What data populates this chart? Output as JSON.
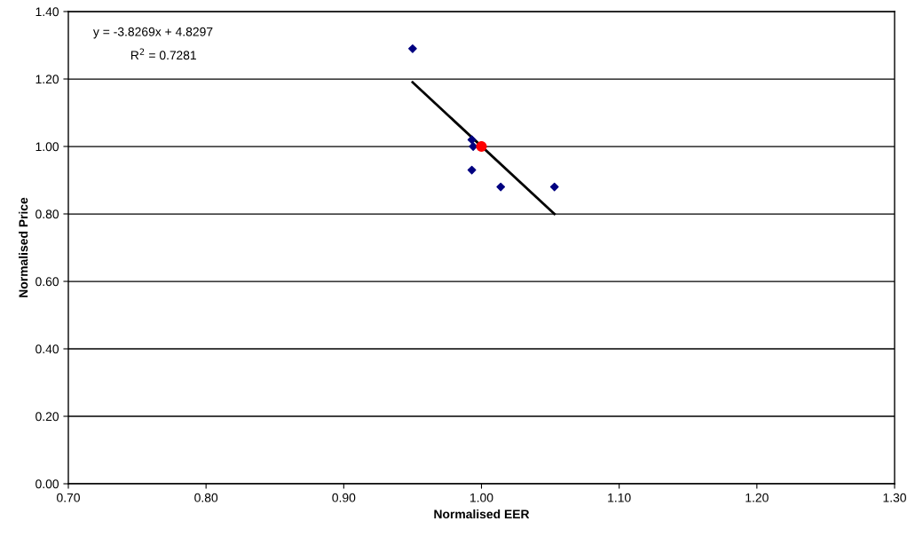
{
  "chart_data": {
    "type": "scatter",
    "xlabel": "Normalised EER",
    "ylabel": "Normalised Price",
    "xlim": [
      0.7,
      1.3
    ],
    "xticks": [
      {
        "value": 0.7,
        "label": "0.70"
      },
      {
        "value": 0.8,
        "label": "0.80"
      },
      {
        "value": 0.9,
        "label": "0.90"
      },
      {
        "value": 1.0,
        "label": "1.00"
      },
      {
        "value": 1.1,
        "label": "1.10"
      },
      {
        "value": 1.2,
        "label": "1.20"
      },
      {
        "value": 1.3,
        "label": "1.30"
      }
    ],
    "ylim": [
      0,
      1.4
    ],
    "yticks": [
      {
        "value": 0,
        "label": "0.00"
      },
      {
        "value": 0.2,
        "label": "0.20"
      },
      {
        "value": 0.4,
        "label": "0.40"
      },
      {
        "value": 0.6,
        "label": "0.60"
      },
      {
        "value": 0.8,
        "label": "0.80"
      },
      {
        "value": 1.0,
        "label": "1.00"
      },
      {
        "value": 1.2,
        "label": "1.20"
      },
      {
        "value": 1.4,
        "label": "1.40"
      }
    ],
    "grid": "y",
    "legend": false,
    "annotations": [
      "y = -3.8269x + 4.8297",
      "R$^{2}$ = 0.7281"
    ],
    "series": [
      {
        "color": "#000080",
        "marker": "diamond",
        "x": [
          0.95,
          0.993,
          0.994,
          0.993,
          1.014,
          1.053
        ],
        "values": [
          1.29,
          1.02,
          1.0,
          0.93,
          0.88,
          0.88
        ]
      },
      {
        "type": "line",
        "color": "#000000",
        "marker": "none",
        "x": [
          0.95,
          1.053
        ],
        "values": [
          1.19,
          0.8
        ]
      },
      {
        "color": "#ff0000",
        "marker": "circle",
        "x": [
          1.0
        ],
        "values": [
          1.0
        ]
      }
    ]
  }
}
